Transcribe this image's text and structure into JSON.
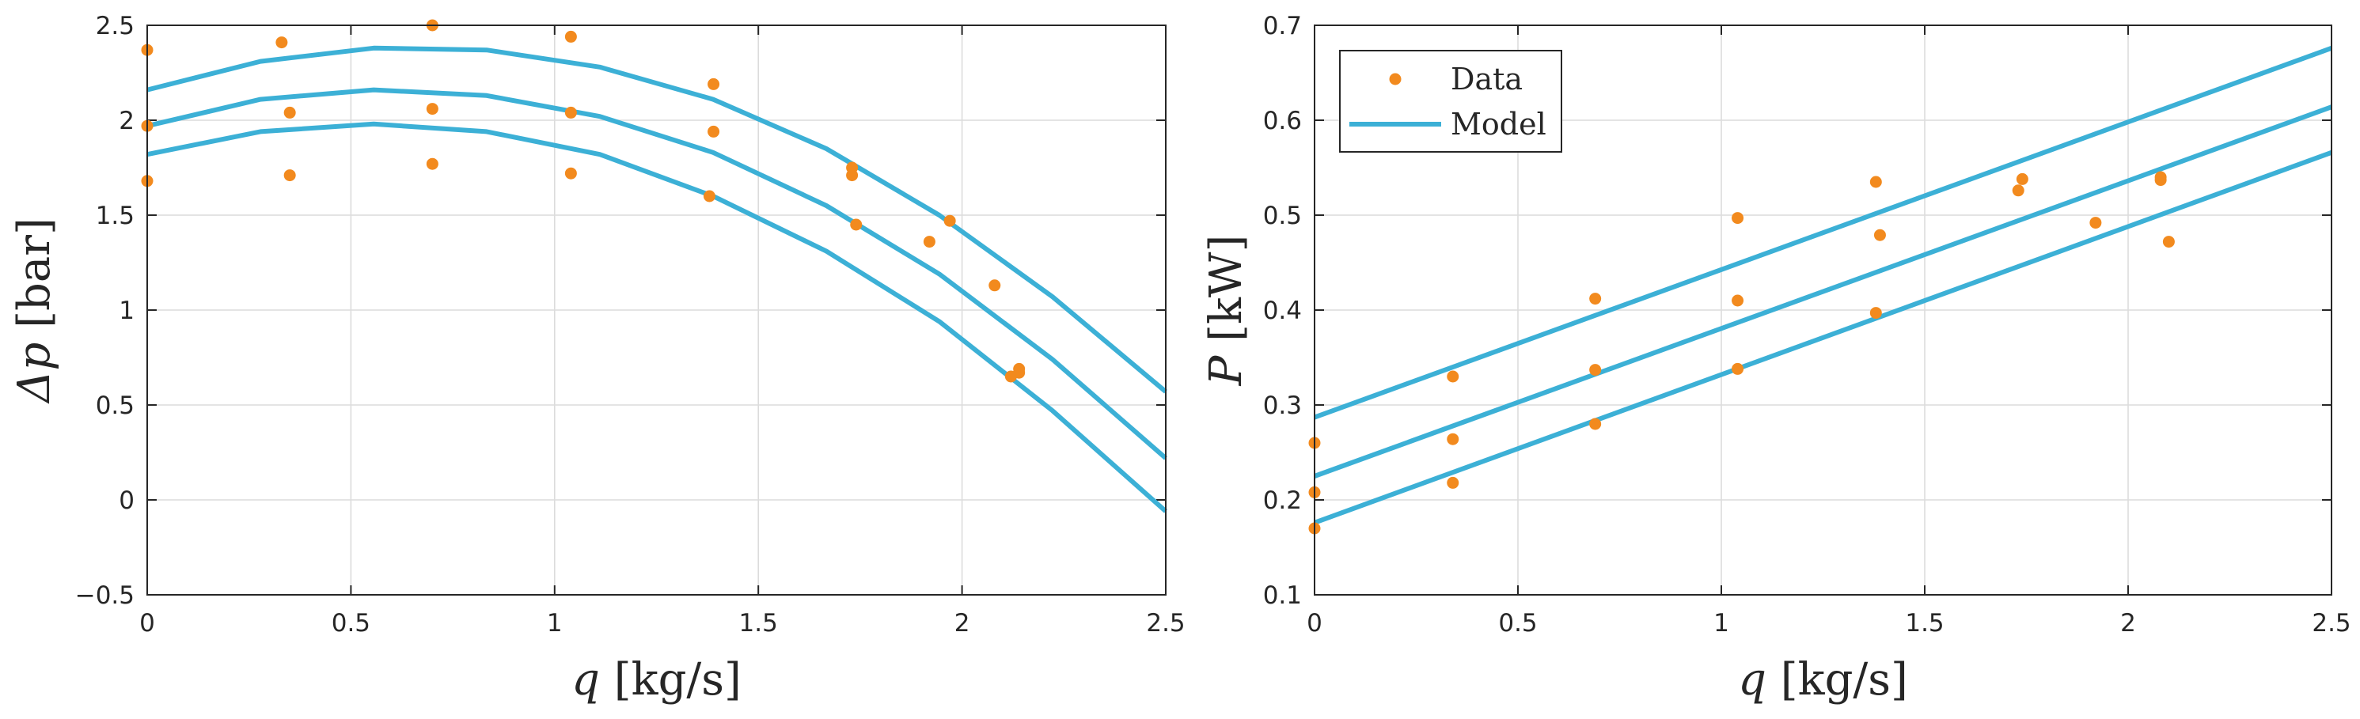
{
  "colors": {
    "data": "#f28a1e",
    "model": "#3cb0d6",
    "axis": "#262626",
    "grid": "#dcdcdc"
  },
  "chart_data": [
    {
      "type": "scatter",
      "panel": "left",
      "xlabel_sym": "q",
      "xlabel_unit": "[kg/s]",
      "ylabel_sym": "Δp",
      "ylabel_unit": "[bar]",
      "xlim": [
        0,
        2.5
      ],
      "ylim": [
        -0.5,
        2.5
      ],
      "xticks": [
        0,
        0.5,
        1,
        1.5,
        2,
        2.5
      ],
      "xtick_labels": [
        "0",
        "0.5",
        "1",
        "1.5",
        "2",
        "2.5"
      ],
      "yticks": [
        -0.5,
        0,
        0.5,
        1,
        1.5,
        2,
        2.5
      ],
      "ytick_labels": [
        "−0.5",
        "0",
        "0.5",
        "1",
        "1.5",
        "2",
        "2.5"
      ],
      "grid": true,
      "series": [
        {
          "name": "Data",
          "kind": "points",
          "x": [
            0,
            0,
            0,
            0.33,
            0.35,
            0.35,
            0.7,
            0.7,
            0.7,
            1.04,
            1.04,
            1.04,
            1.38,
            1.39,
            1.39,
            1.73,
            1.73,
            1.74,
            1.92,
            1.97,
            2.08,
            2.12,
            2.14,
            2.14
          ],
          "y": [
            2.37,
            1.97,
            1.68,
            2.41,
            2.04,
            1.71,
            2.5,
            2.06,
            1.77,
            2.44,
            2.04,
            1.72,
            1.6,
            2.19,
            1.94,
            1.75,
            1.71,
            1.45,
            1.36,
            1.47,
            1.13,
            0.65,
            0.69,
            0.67
          ]
        },
        {
          "name": "Model",
          "kind": "line",
          "x": [
            0,
            0.278,
            0.556,
            0.833,
            1.111,
            1.389,
            1.667,
            1.944,
            2.222,
            2.5
          ],
          "y": [
            2.16,
            2.31,
            2.38,
            2.37,
            2.28,
            2.11,
            1.85,
            1.5,
            1.07,
            0.57
          ]
        },
        {
          "name": "Model",
          "kind": "line",
          "x": [
            0,
            0.278,
            0.556,
            0.833,
            1.111,
            1.389,
            1.667,
            1.944,
            2.222,
            2.5
          ],
          "y": [
            1.97,
            2.11,
            2.16,
            2.13,
            2.02,
            1.83,
            1.55,
            1.19,
            0.74,
            0.22
          ]
        },
        {
          "name": "Model",
          "kind": "line",
          "x": [
            0,
            0.278,
            0.556,
            0.833,
            1.111,
            1.389,
            1.667,
            1.944,
            2.222,
            2.5
          ],
          "y": [
            1.82,
            1.94,
            1.98,
            1.94,
            1.82,
            1.6,
            1.31,
            0.94,
            0.47,
            -0.06
          ]
        }
      ]
    },
    {
      "type": "scatter",
      "panel": "right",
      "xlabel_sym": "q",
      "xlabel_unit": "[kg/s]",
      "ylabel_sym": "P",
      "ylabel_unit": "[kW]",
      "xlim": [
        0,
        2.5
      ],
      "ylim": [
        0.1,
        0.7
      ],
      "xticks": [
        0,
        0.5,
        1,
        1.5,
        2,
        2.5
      ],
      "xtick_labels": [
        "0",
        "0.5",
        "1",
        "1.5",
        "2",
        "2.5"
      ],
      "yticks": [
        0.1,
        0.2,
        0.3,
        0.4,
        0.5,
        0.6,
        0.7
      ],
      "ytick_labels": [
        "0.1",
        "0.2",
        "0.3",
        "0.4",
        "0.5",
        "0.6",
        "0.7"
      ],
      "grid": true,
      "legend": {
        "position": "top-left",
        "entries": [
          "Data",
          "Model"
        ]
      },
      "series": [
        {
          "name": "Data",
          "kind": "points",
          "x": [
            0,
            0,
            0,
            0.34,
            0.34,
            0.34,
            0.69,
            0.69,
            0.69,
            1.04,
            1.04,
            1.04,
            1.38,
            1.38,
            1.39,
            1.73,
            1.74,
            1.92,
            2.08,
            2.08,
            2.1
          ],
          "y": [
            0.26,
            0.208,
            0.17,
            0.33,
            0.264,
            0.218,
            0.412,
            0.337,
            0.28,
            0.497,
            0.41,
            0.338,
            0.535,
            0.397,
            0.479,
            0.526,
            0.538,
            0.492,
            0.54,
            0.537,
            0.472
          ]
        },
        {
          "name": "Model",
          "kind": "line",
          "x": [
            0,
            2.5
          ],
          "y": [
            0.287,
            0.676
          ]
        },
        {
          "name": "Model",
          "kind": "line",
          "x": [
            0,
            2.5
          ],
          "y": [
            0.225,
            0.614
          ]
        },
        {
          "name": "Model",
          "kind": "line",
          "x": [
            0,
            2.5
          ],
          "y": [
            0.176,
            0.566
          ]
        }
      ]
    }
  ]
}
